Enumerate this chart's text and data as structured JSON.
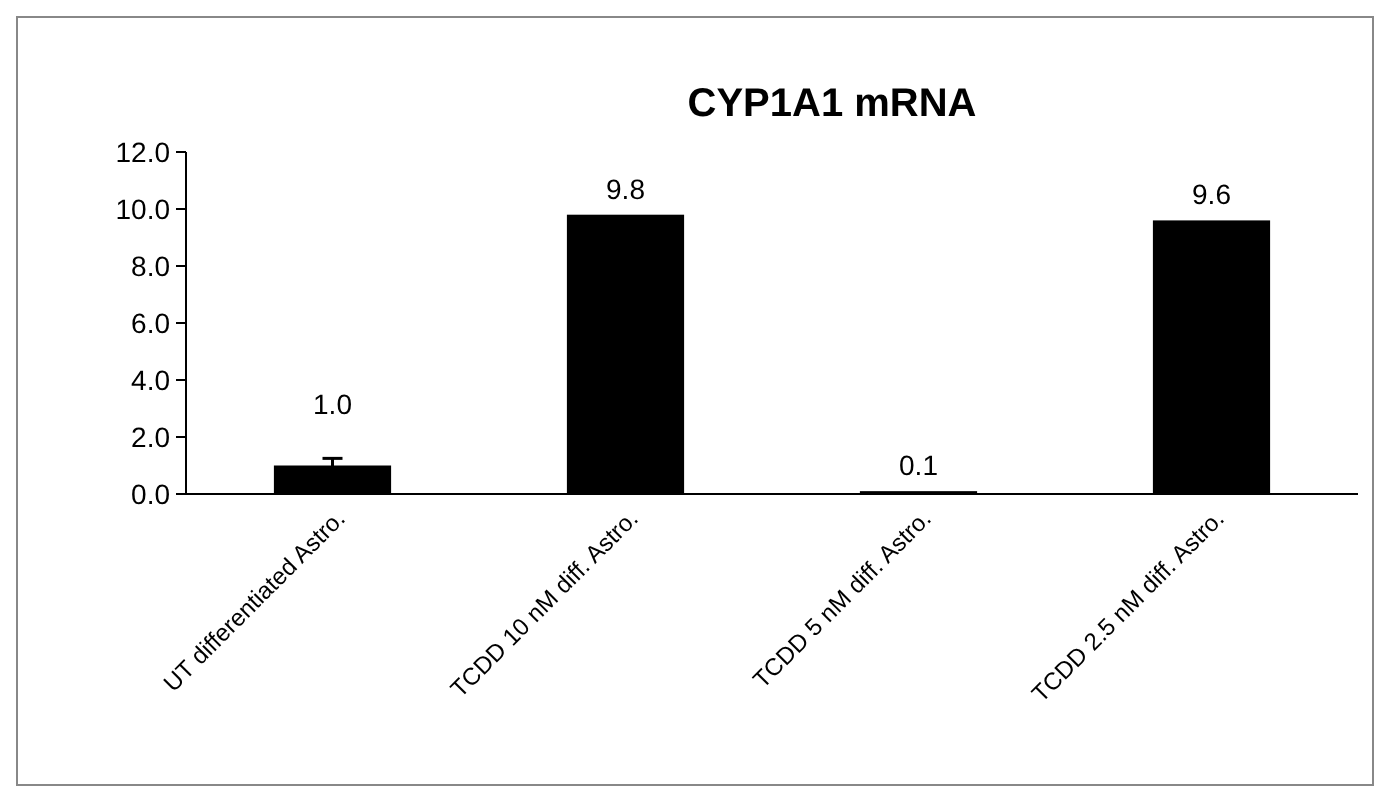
{
  "chart_data": {
    "type": "bar",
    "title": "CYP1A1 mRNA",
    "categories": [
      "UT differentiated Astro.",
      "TCDD 10 nM diff. Astro.",
      "TCDD 5 nM diff. Astro.",
      "TCDD 2.5 nM diff. Astro."
    ],
    "values": [
      1.0,
      9.8,
      0.1,
      9.6
    ],
    "color": "#000000",
    "errors": [
      0.25,
      null,
      null,
      null
    ],
    "value_labels": [
      "1.0",
      "9.8",
      "0.1",
      "9.6"
    ],
    "ylim": [
      0,
      12
    ],
    "yticks": [
      {
        "value": 0,
        "label": "0.0"
      },
      {
        "value": 2,
        "label": "2.0"
      },
      {
        "value": 4,
        "label": "4.0"
      },
      {
        "value": 6,
        "label": "6.0"
      },
      {
        "value": 8,
        "label": "8.0"
      },
      {
        "value": 10,
        "label": "10.0"
      },
      {
        "value": 12,
        "label": "12.0"
      }
    ],
    "grid": false
  }
}
